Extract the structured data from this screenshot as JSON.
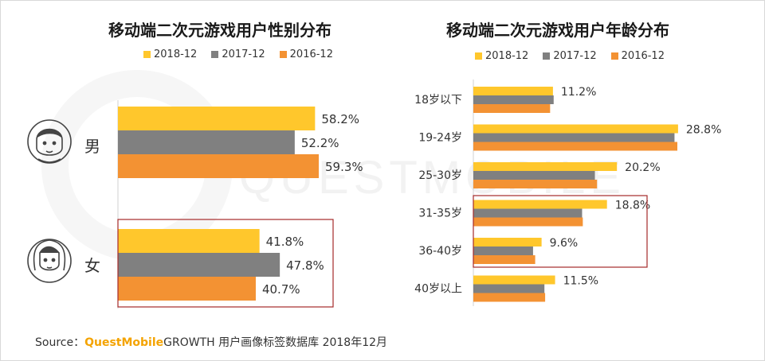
{
  "colors": {
    "s2018": "#FFC72C",
    "s2017": "#808080",
    "s2016": "#F39233",
    "highlight": "#A52A2A"
  },
  "watermark": "QUESTMOBILE",
  "chart_data": [
    {
      "type": "bar",
      "orientation": "horizontal",
      "title": "移动端二次元游戏用户性别分布",
      "categories": [
        "男",
        "女"
      ],
      "series": [
        {
          "name": "2018-12",
          "values": [
            58.2,
            41.8
          ],
          "labels": [
            "58.2%",
            "41.8%"
          ]
        },
        {
          "name": "2017-12",
          "values": [
            52.2,
            47.8
          ],
          "labels": [
            "52.2%",
            "47.8%"
          ]
        },
        {
          "name": "2016-12",
          "values": [
            59.3,
            40.7
          ],
          "labels": [
            "59.3%",
            "40.7%"
          ]
        }
      ],
      "legend_position": "top",
      "highlighted_categories": [
        "女"
      ]
    },
    {
      "type": "bar",
      "orientation": "horizontal",
      "title": "移动端二次元游戏用户年龄分布",
      "categories": [
        "18岁以下",
        "19-24岁",
        "25-30岁",
        "31-35岁",
        "36-40岁",
        "40岁以上"
      ],
      "series": [
        {
          "name": "2018-12",
          "values": [
            11.2,
            28.8,
            20.2,
            18.8,
            9.6,
            11.5
          ],
          "labels": [
            "11.2%",
            "28.8%",
            "20.2%",
            "18.8%",
            "9.6%",
            "11.5%"
          ]
        },
        {
          "name": "2017-12",
          "values": [
            11.3,
            28.3,
            17.1,
            15.3,
            8.4,
            10.0
          ]
        },
        {
          "name": "2016-12",
          "values": [
            10.8,
            28.7,
            17.4,
            15.4,
            8.7,
            10.1
          ]
        }
      ],
      "legend_position": "top",
      "highlighted_categories": [
        "31-35岁",
        "36-40岁"
      ]
    }
  ],
  "source": {
    "prefix": "Source：",
    "brand": "QuestMobile",
    "text": "GROWTH 用户画像标签数据库 2018年12月"
  }
}
